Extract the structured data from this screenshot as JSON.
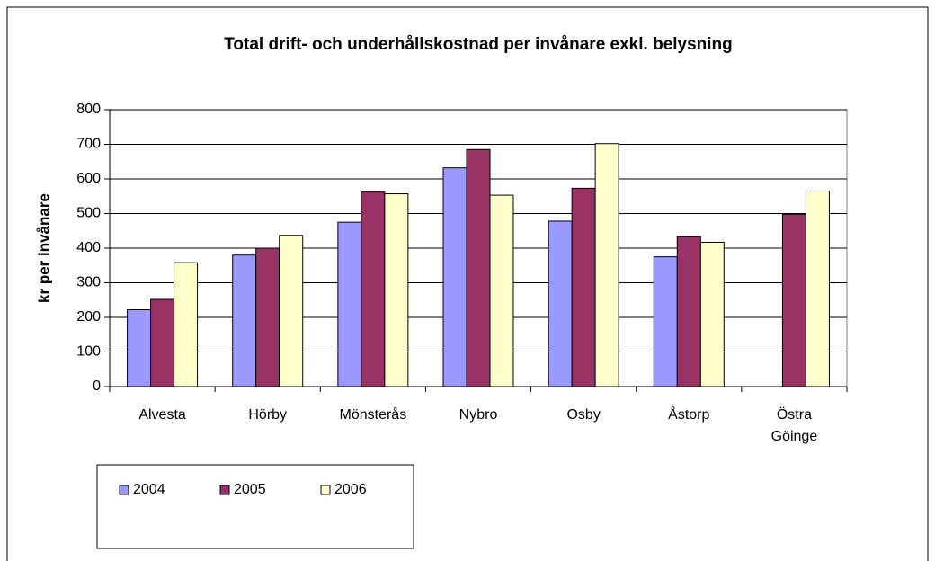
{
  "chart_data": {
    "type": "bar",
    "title": "Total drift- och underhållskostnad per invånare exkl. belysning",
    "y_label": "kr per invånare",
    "categories": [
      "Alvesta",
      "Hörby",
      "Mönsterås",
      "Nybro",
      "Osby",
      "Åstorp",
      "Östra Göinge"
    ],
    "series": [
      {
        "name": "2004",
        "color": "#9999ff",
        "values": [
          222,
          380,
          475,
          632,
          478,
          375,
          null
        ]
      },
      {
        "name": "2005",
        "color": "#993366",
        "values": [
          252,
          400,
          562,
          685,
          573,
          433,
          498
        ]
      },
      {
        "name": "2006",
        "color": "#ffffcc",
        "values": [
          358,
          437,
          557,
          553,
          702,
          417,
          565
        ]
      }
    ],
    "ylim": [
      0,
      800
    ],
    "yticks": [
      0,
      100,
      200,
      300,
      400,
      500,
      600,
      700,
      800
    ],
    "grid": true,
    "legend": "bottom-left"
  }
}
